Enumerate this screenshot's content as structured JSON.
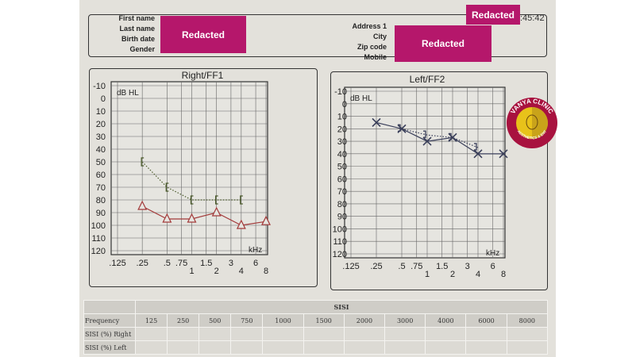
{
  "header": {
    "left_labels": [
      "First name",
      "Last name",
      "Birth date",
      "Gender"
    ],
    "right_labels": [
      "Address 1",
      "City",
      "Zip code",
      "Mobile"
    ],
    "redacted_label": "Redacted",
    "time_fragment": ":45:42"
  },
  "logo": {
    "line1": "VANYA CLINIC",
    "line2": "AESTHETICS & ENT"
  },
  "chart_data": [
    {
      "type": "line",
      "title": "Right/FF1",
      "ylabel": "dB HL",
      "xlabel": "kHz",
      "ylim": [
        -10,
        120
      ],
      "y_ticks": [
        "-10",
        "0",
        "10",
        "20",
        "30",
        "40",
        "50",
        "60",
        "70",
        "80",
        "90",
        "100",
        "110",
        "120"
      ],
      "x_ticks": [
        ".125",
        ".25",
        ".5",
        ".75",
        "1",
        "1.5",
        "2",
        "3",
        "4",
        "6",
        "8"
      ],
      "grid": true,
      "series": [
        {
          "name": "Air conduction (triangle)",
          "marker": "triangle",
          "color": "#a33a3a",
          "line": "solid",
          "x": [
            0.25,
            0.5,
            1,
            2,
            4,
            8
          ],
          "y": [
            85,
            95,
            95,
            90,
            100,
            97
          ]
        },
        {
          "name": "Bone conduction masked ([)",
          "marker": "[",
          "color": "#4a5a2a",
          "line": "dotted",
          "x": [
            0.25,
            0.5,
            1,
            2,
            4
          ],
          "y": [
            50,
            70,
            80,
            80,
            80
          ]
        }
      ]
    },
    {
      "type": "line",
      "title": "Left/FF2",
      "ylabel": "dB HL",
      "xlabel": "kHz",
      "ylim": [
        -10,
        120
      ],
      "y_ticks": [
        "-10",
        "0",
        "10",
        "20",
        "30",
        "40",
        "50",
        "60",
        "70",
        "80",
        "90",
        "100",
        "110",
        "120"
      ],
      "x_ticks": [
        ".125",
        ".25",
        ".5",
        ".75",
        "1",
        "1.5",
        "2",
        "3",
        "4",
        "6",
        "8"
      ],
      "grid": true,
      "series": [
        {
          "name": "Air conduction (X)",
          "marker": "x",
          "color": "#3a3f5a",
          "line": "solid",
          "x": [
            0.25,
            0.5,
            1,
            2,
            4,
            8
          ],
          "y": [
            15,
            20,
            30,
            27,
            40,
            40
          ]
        },
        {
          "name": "Bone conduction (])",
          "marker": "]",
          "color": "#3a3f5a",
          "line": "dotted",
          "x": [
            0.5,
            1,
            2,
            4
          ],
          "y": [
            20,
            25,
            27,
            35
          ]
        }
      ]
    }
  ],
  "sisi": {
    "title": "SISI",
    "row_header": "Frequency",
    "frequencies": [
      "125",
      "250",
      "500",
      "750",
      "1000",
      "1500",
      "2000",
      "3000",
      "4000",
      "6000",
      "8000"
    ],
    "rows": [
      "SISI (%) Right",
      "SISI (%) Left"
    ]
  }
}
